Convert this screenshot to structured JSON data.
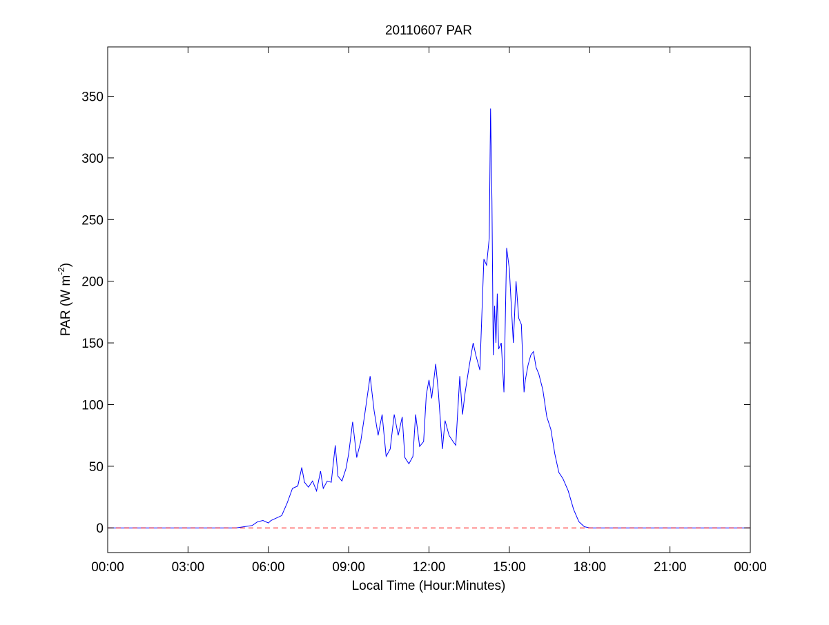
{
  "chart_data": {
    "type": "line",
    "title": "20110607 PAR",
    "xlabel": "Local Time (Hour:Minutes)",
    "ylabel": {
      "text": "PAR (W m",
      "superscript": "-2",
      "suffix": ")"
    },
    "xlim": [
      0,
      24
    ],
    "ylim": [
      -20,
      390
    ],
    "grid": false,
    "x_ticks": [
      {
        "value": 0,
        "label": "00:00"
      },
      {
        "value": 3,
        "label": "03:00"
      },
      {
        "value": 6,
        "label": "06:00"
      },
      {
        "value": 9,
        "label": "09:00"
      },
      {
        "value": 12,
        "label": "12:00"
      },
      {
        "value": 15,
        "label": "15:00"
      },
      {
        "value": 18,
        "label": "18:00"
      },
      {
        "value": 21,
        "label": "21:00"
      },
      {
        "value": 24,
        "label": "00:00"
      }
    ],
    "y_ticks": [
      {
        "value": 0,
        "label": "0"
      },
      {
        "value": 50,
        "label": "50"
      },
      {
        "value": 100,
        "label": "100"
      },
      {
        "value": 150,
        "label": "150"
      },
      {
        "value": 200,
        "label": "200"
      },
      {
        "value": 250,
        "label": "250"
      },
      {
        "value": 300,
        "label": "300"
      },
      {
        "value": 350,
        "label": "350"
      }
    ],
    "series": [
      {
        "line_color": "#0000ff",
        "line_style": "solid",
        "x": [
          0,
          4.8,
          5.1,
          5.4,
          5.6,
          5.8,
          6.0,
          6.1,
          6.3,
          6.5,
          6.7,
          6.9,
          7.1,
          7.25,
          7.35,
          7.5,
          7.65,
          7.8,
          7.95,
          8.05,
          8.2,
          8.35,
          8.5,
          8.6,
          8.75,
          8.9,
          9.0,
          9.15,
          9.3,
          9.45,
          9.6,
          9.8,
          9.95,
          10.1,
          10.25,
          10.4,
          10.55,
          10.7,
          10.85,
          11.0,
          11.1,
          11.25,
          11.4,
          11.5,
          11.65,
          11.8,
          11.9,
          12.0,
          12.1,
          12.25,
          12.35,
          12.5,
          12.6,
          12.75,
          12.9,
          13.0,
          13.15,
          13.25,
          13.35,
          13.5,
          13.65,
          13.75,
          13.9,
          14.05,
          14.15,
          14.25,
          14.3,
          14.35,
          14.4,
          14.45,
          14.5,
          14.55,
          14.6,
          14.7,
          14.8,
          14.9,
          15.0,
          15.05,
          15.15,
          15.25,
          15.35,
          15.45,
          15.55,
          15.6,
          15.7,
          15.8,
          15.9,
          16.0,
          16.1,
          16.25,
          16.4,
          16.55,
          16.7,
          16.85,
          17.0,
          17.2,
          17.4,
          17.6,
          17.8,
          18.0,
          18.2,
          18.4,
          18.6,
          18.8,
          19.0,
          19.2,
          19.4,
          20.0,
          21.0,
          24.0
        ],
        "y": [
          0,
          0,
          1,
          2,
          5,
          6,
          4,
          6,
          8,
          10,
          20,
          32,
          34,
          49,
          37,
          33,
          38,
          30,
          46,
          32,
          38,
          37,
          67,
          42,
          38,
          48,
          60,
          86,
          57,
          70,
          92,
          123,
          95,
          75,
          92,
          58,
          64,
          92,
          75,
          90,
          57,
          52,
          58,
          92,
          66,
          70,
          108,
          120,
          105,
          133,
          110,
          64,
          87,
          75,
          70,
          67,
          123,
          92,
          110,
          131,
          150,
          140,
          128,
          218,
          213,
          235,
          340,
          265,
          140,
          180,
          150,
          190,
          145,
          150,
          110,
          227,
          210,
          190,
          150,
          200,
          170,
          165,
          110,
          120,
          132,
          140,
          143,
          130,
          125,
          112,
          90,
          80,
          60,
          45,
          40,
          30,
          15,
          5,
          1,
          0,
          0,
          0,
          0,
          0,
          0,
          0,
          0,
          0,
          0,
          0
        ]
      },
      {
        "line_color": "#ff0000",
        "line_style": "dashed",
        "x": [
          0,
          24
        ],
        "y": [
          0,
          0
        ]
      }
    ]
  }
}
